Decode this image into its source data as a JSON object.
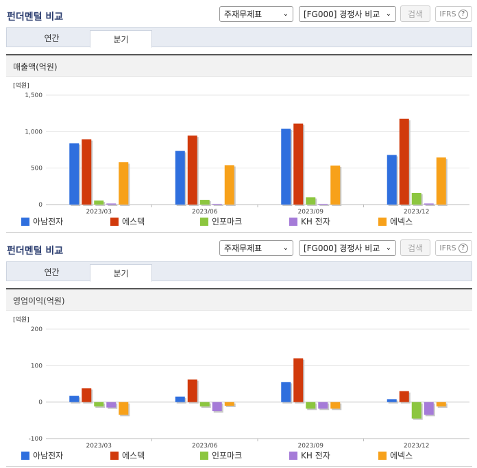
{
  "sections": [
    {
      "title": "펀더멘털 비교",
      "select_statement": "주재무제표",
      "select_compare": "[FG000] 경쟁사 비교",
      "search_label": "검색",
      "ifrs_label": "IFRS",
      "help_glyph": "?",
      "tabs": [
        "연간",
        "분기"
      ],
      "active_tab": "분기",
      "chart_title": "매출액(억원)"
    },
    {
      "title": "펀더멘털 비교",
      "select_statement": "주재무제표",
      "select_compare": "[FG000] 경쟁사 비교",
      "search_label": "검색",
      "ifrs_label": "IFRS",
      "help_glyph": "?",
      "tabs": [
        "연간",
        "분기"
      ],
      "active_tab": "분기",
      "chart_title": "영업이익(억원)"
    }
  ],
  "chart_data": [
    {
      "type": "bar",
      "title": "매출액(억원)",
      "unit_label": "[억원]",
      "categories": [
        "2023/03",
        "2023/06",
        "2023/09",
        "2023/12"
      ],
      "y_ticks": [
        "1,500",
        "1,000",
        "500",
        "0"
      ],
      "y_tick_values": [
        1500,
        1000,
        500,
        0
      ],
      "ylim": [
        0,
        1500
      ],
      "grid": true,
      "legend_position": "bottom",
      "series": [
        {
          "name": "아남전자",
          "color": "#2f6fde",
          "values": [
            840,
            735,
            1040,
            680
          ]
        },
        {
          "name": "에스텍",
          "color": "#d13a0c",
          "values": [
            895,
            945,
            1110,
            1175
          ]
        },
        {
          "name": "인포마크",
          "color": "#8cc63f",
          "values": [
            55,
            65,
            100,
            160
          ]
        },
        {
          "name": "KH 전자",
          "color": "#a57bd8",
          "values": [
            15,
            10,
            10,
            15
          ]
        },
        {
          "name": "에넥스",
          "color": "#f7a11a",
          "values": [
            580,
            540,
            535,
            645
          ]
        }
      ]
    },
    {
      "type": "bar",
      "title": "영업이익(억원)",
      "unit_label": "[억원]",
      "categories": [
        "2023/03",
        "2023/06",
        "2023/09",
        "2023/12"
      ],
      "y_ticks": [
        "200",
        "100",
        "0",
        "-100"
      ],
      "y_tick_values": [
        200,
        100,
        0,
        -100
      ],
      "ylim": [
        -100,
        200
      ],
      "grid": true,
      "legend_position": "bottom",
      "series": [
        {
          "name": "아남전자",
          "color": "#2f6fde",
          "values": [
            17,
            15,
            55,
            8
          ]
        },
        {
          "name": "에스텍",
          "color": "#d13a0c",
          "values": [
            38,
            62,
            120,
            30
          ]
        },
        {
          "name": "인포마크",
          "color": "#8cc63f",
          "values": [
            -12,
            -12,
            -18,
            -45
          ]
        },
        {
          "name": "KH 전자",
          "color": "#a57bd8",
          "values": [
            -15,
            -25,
            -18,
            -35
          ]
        },
        {
          "name": "에넥스",
          "color": "#f7a11a",
          "values": [
            -35,
            -10,
            -18,
            -12
          ]
        }
      ]
    }
  ]
}
